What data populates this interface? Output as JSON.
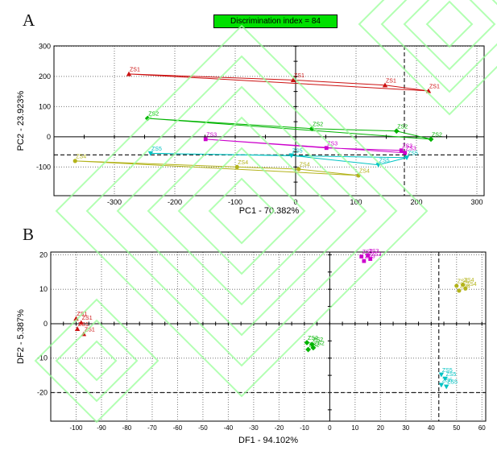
{
  "figure": {
    "panel_a_label": "A",
    "panel_b_label": "B",
    "badge": {
      "text": "Discrimination index = 84",
      "bg_color": "#00e000",
      "border_color": "#000000"
    },
    "watermark": {
      "name": "green-logo-watermark",
      "color": "#99ff99"
    }
  },
  "chart_data": [
    {
      "type": "scatter",
      "id": "pca",
      "title": "",
      "xlabel": "PC1 - 70.382%",
      "ylabel": "PC2 - 23.923%",
      "xlim": [
        -400,
        312
      ],
      "ylim": [
        -195,
        301
      ],
      "xticks": [
        -300,
        -200,
        -100,
        0,
        100,
        200,
        300
      ],
      "yticks": [
        -100,
        0,
        100,
        200,
        300
      ],
      "grid": "dotted",
      "legend": "none",
      "minor_tick_step": 50,
      "dashed_line_x": 180,
      "dashed_line_y": -60,
      "connect_group_points": true,
      "series": [
        {
          "name": "ZS1",
          "color": "#cc1111",
          "marker": "triangle-up",
          "points": [
            [
              -276,
              208
            ],
            [
              -4,
              188
            ],
            [
              148,
              171
            ],
            [
              220,
              152
            ]
          ]
        },
        {
          "name": "ZS2",
          "color": "#00b400",
          "marker": "diamond",
          "points": [
            [
              -245,
              61
            ],
            [
              27,
              27
            ],
            [
              167,
              19
            ],
            [
              224,
              -8
            ]
          ]
        },
        {
          "name": "ZS3",
          "color": "#cc00cc",
          "marker": "square",
          "points": [
            [
              -149,
              -8
            ],
            [
              51,
              -37
            ],
            [
              175,
              -45
            ],
            [
              181,
              -53
            ]
          ]
        },
        {
          "name": "ZS5",
          "color": "#00c3c3",
          "marker": "triangle-down",
          "points": [
            [
              -240,
              -55
            ],
            [
              -7,
              -62
            ],
            [
              137,
              -93
            ],
            [
              184,
              -69
            ]
          ]
        },
        {
          "name": "ZS4",
          "color": "#b3b31a",
          "marker": "circle",
          "points": [
            [
              -365,
              -80
            ],
            [
              -97,
              -100
            ],
            [
              5,
              -107
            ],
            [
              104,
              -128
            ]
          ]
        }
      ]
    },
    {
      "type": "scatter",
      "id": "dfa",
      "title": "",
      "xlabel": "DF1 - 94.102%",
      "ylabel": "DF2 - 5.387%",
      "xlim": [
        -110,
        61.5
      ],
      "ylim": [
        -28.3,
        20.8
      ],
      "xticks": [
        -100,
        -90,
        -80,
        -70,
        -60,
        -50,
        -40,
        -30,
        -20,
        -10,
        0,
        10,
        20,
        30,
        40,
        50,
        60
      ],
      "yticks": [
        -20,
        -10,
        0,
        10,
        20
      ],
      "grid": "dotted",
      "legend": "none",
      "minor_tick_step": 5,
      "dashed_line_x": 43,
      "dashed_line_y": -20,
      "connect_group_points": false,
      "series": [
        {
          "name": "ZS1",
          "color": "#cc1111",
          "marker": "triangle-up",
          "points": [
            [
              -100,
              1.5
            ],
            [
              -98,
              0.3
            ],
            [
              -99.5,
              -1.5
            ],
            [
              -97,
              -3
            ]
          ]
        },
        {
          "name": "ZS2",
          "color": "#00b400",
          "marker": "diamond",
          "points": [
            [
              -9,
              -5.5
            ],
            [
              -7,
              -6
            ],
            [
              -8.5,
              -7.5
            ],
            [
              -6.5,
              -7
            ]
          ]
        },
        {
          "name": "ZS3",
          "color": "#cc00cc",
          "marker": "square",
          "points": [
            [
              12.5,
              19.5
            ],
            [
              15,
              19.8
            ],
            [
              13.5,
              18.2
            ],
            [
              16,
              18.8
            ]
          ]
        },
        {
          "name": "ZS4",
          "color": "#b3b31a",
          "marker": "circle",
          "points": [
            [
              50,
              11
            ],
            [
              52.5,
              11.3
            ],
            [
              51,
              9.6
            ],
            [
              53.5,
              10.2
            ]
          ]
        },
        {
          "name": "ZS5",
          "color": "#00c3c3",
          "marker": "triangle-down",
          "points": [
            [
              44,
              -14.8
            ],
            [
              45.5,
              -16
            ],
            [
              44,
              -17.8
            ],
            [
              46,
              -18.3
            ]
          ]
        }
      ]
    }
  ]
}
